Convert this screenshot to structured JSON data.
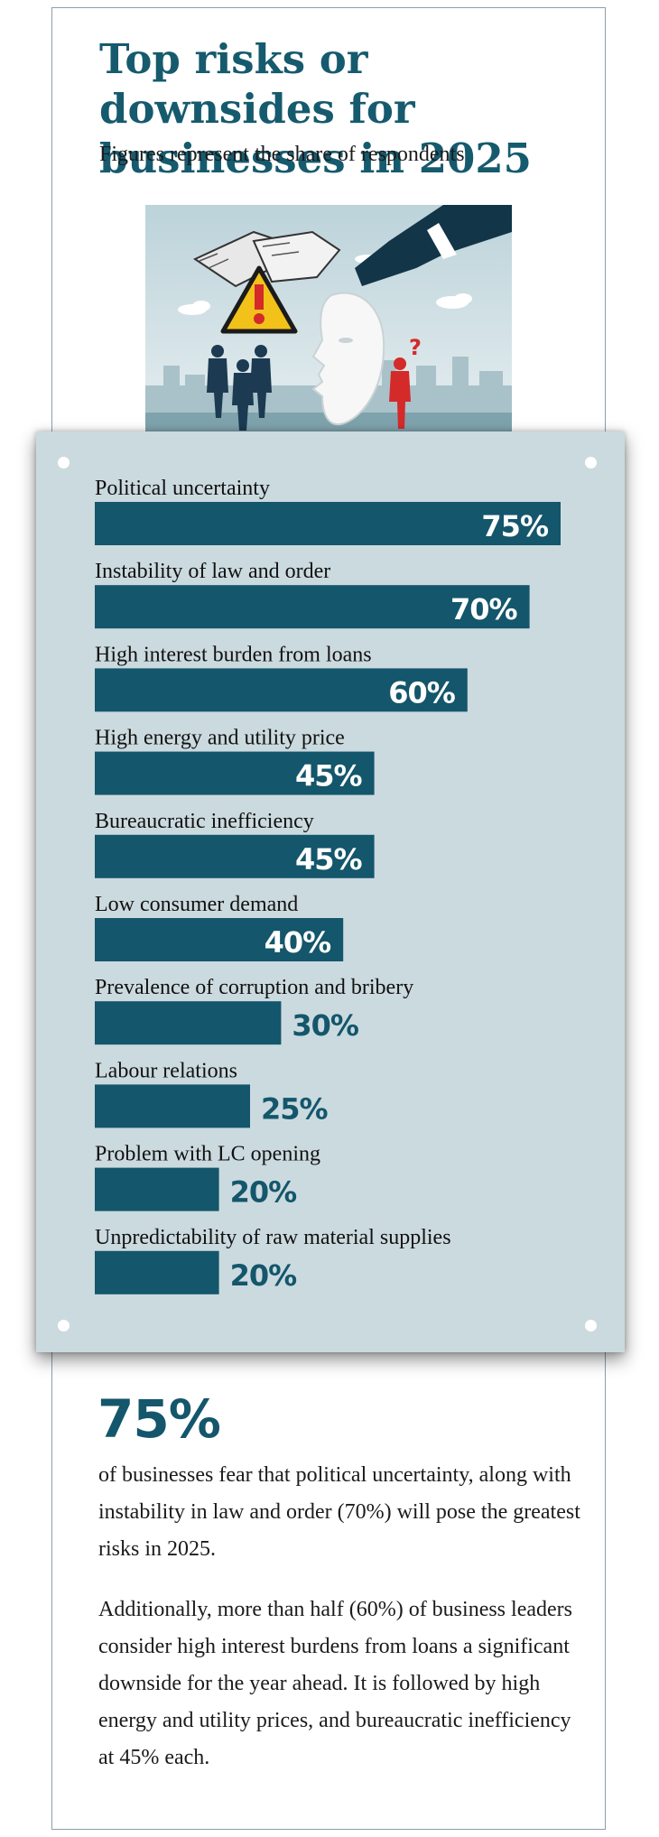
{
  "header": {
    "title": "Top risks or downsides for businesses in 2025",
    "subtitle": "Figures represent the share of respondents"
  },
  "illustration": {
    "icons": [
      "gloved-hands-icon",
      "warning-sign-icon",
      "hand-holding-mask-icon",
      "businessmen-silhouettes-icon",
      "red-figure-question-icon"
    ],
    "accent_red": "#d42a2a",
    "sign_yellow": "#f2c21a"
  },
  "chart_data": {
    "type": "bar",
    "orientation": "horizontal",
    "categories": [
      "Political uncertainty",
      "Instability of law and order",
      "High interest burden from loans",
      "High energy and utility price",
      "Bureaucratic inefficiency",
      "Low consumer demand",
      "Prevalence of corruption and bribery",
      "Labour relations",
      "Problem with LC opening",
      "Unpredictability of raw material supplies"
    ],
    "values": [
      75,
      70,
      60,
      45,
      45,
      40,
      30,
      25,
      20,
      20
    ],
    "value_labels": [
      "75%",
      "70%",
      "60%",
      "45%",
      "45%",
      "40%",
      "30%",
      "25%",
      "20%",
      "20%"
    ],
    "unit": "%",
    "xlim": [
      0,
      100
    ],
    "grid": false,
    "legend": "none",
    "bar_color": "#14566b",
    "panel_color": "#cbdadf"
  },
  "summary": {
    "highlight": "75%",
    "paragraph1": "of businesses fear that political uncertainty, along with instability in law and order (70%) will pose the greatest risks in 2025.",
    "paragraph2": "Additionally, more than half (60%) of business leaders consider high interest burdens from loans a significant downside for the year ahead. It is followed by high energy and utility prices, and bureaucratic inefficiency at 45% each."
  }
}
